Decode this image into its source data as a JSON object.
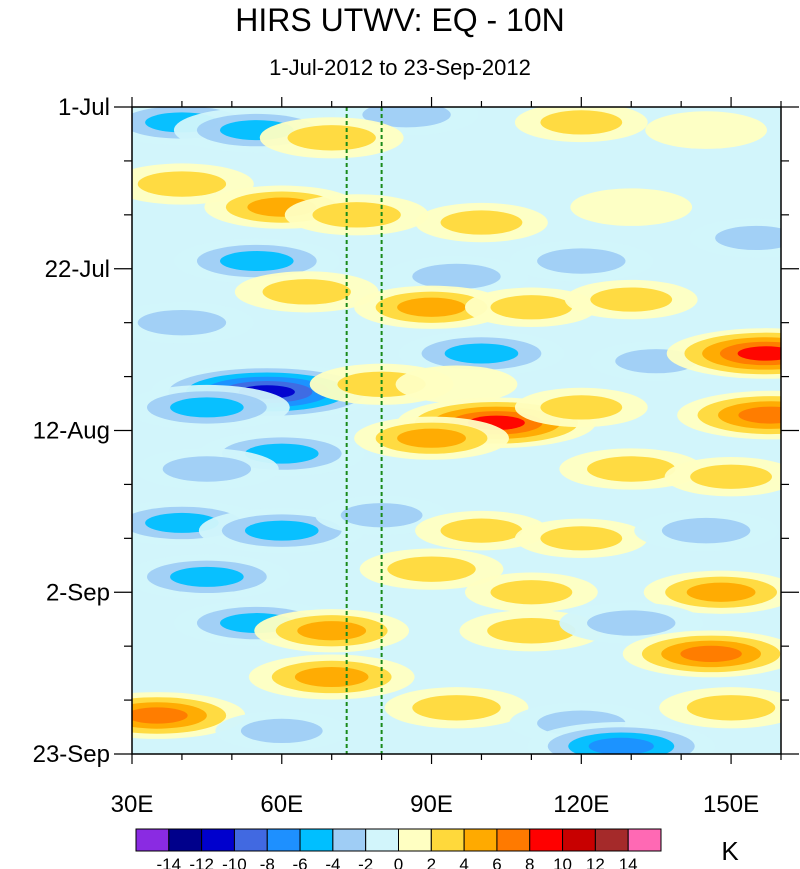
{
  "chart_data": {
    "type": "heatmap",
    "title": "HIRS UTWV: EQ - 10N",
    "subtitle": "1-Jul-2012 to 23-Sep-2012",
    "x_ticks": [
      {
        "value": 30,
        "label": "30E"
      },
      {
        "value": 60,
        "label": "60E"
      },
      {
        "value": 90,
        "label": "90E"
      },
      {
        "value": 120,
        "label": "120E"
      },
      {
        "value": 150,
        "label": "150E"
      }
    ],
    "xlim": [
      30,
      160
    ],
    "y_ticks": [
      {
        "day": 0,
        "label": "1-Jul"
      },
      {
        "day": 21,
        "label": "22-Jul"
      },
      {
        "day": 42,
        "label": "12-Aug"
      },
      {
        "day": 63,
        "label": "2-Sep"
      },
      {
        "day": 84,
        "label": "23-Sep"
      }
    ],
    "ylim_days": [
      0,
      84
    ],
    "reference_lines_lon": [
      73,
      80
    ],
    "colorbar": {
      "unit": "K",
      "levels": [
        -14,
        -12,
        -10,
        -8,
        -6,
        -4,
        -2,
        0,
        2,
        4,
        6,
        8,
        10,
        12,
        14
      ],
      "level_labels": [
        "-14",
        "-12",
        "-10",
        "-8",
        "-6",
        "-4",
        "-2",
        "0",
        "2",
        "4",
        "6",
        "8",
        "10",
        "12",
        "14"
      ],
      "colors": [
        "#8a2be2",
        "#00008b",
        "#0000cd",
        "#4169e1",
        "#1e90ff",
        "#00bfff",
        "#9fcdf5",
        "#d2f5fb",
        "#ffffc2",
        "#ffd93b",
        "#ffaa00",
        "#ff7a00",
        "#ff0000",
        "#c80000",
        "#a52a2a",
        "#ff69b4"
      ]
    },
    "anomaly_features": [
      {
        "lon": 40,
        "day": 2,
        "value": -6
      },
      {
        "lon": 55,
        "day": 3,
        "value": -6
      },
      {
        "lon": 85,
        "day": 1,
        "value": -4
      },
      {
        "lon": 120,
        "day": 2,
        "value": 3
      },
      {
        "lon": 145,
        "day": 3,
        "value": 2
      },
      {
        "lon": 70,
        "day": 4,
        "value": 4
      },
      {
        "lon": 40,
        "day": 10,
        "value": 4
      },
      {
        "lon": 60,
        "day": 13,
        "value": 5
      },
      {
        "lon": 75,
        "day": 14,
        "value": 4
      },
      {
        "lon": 100,
        "day": 15,
        "value": 3
      },
      {
        "lon": 130,
        "day": 13,
        "value": 2
      },
      {
        "lon": 55,
        "day": 20,
        "value": -6
      },
      {
        "lon": 95,
        "day": 22,
        "value": -4
      },
      {
        "lon": 120,
        "day": 20,
        "value": -4
      },
      {
        "lon": 155,
        "day": 17,
        "value": -3
      },
      {
        "lon": 65,
        "day": 24,
        "value": 4
      },
      {
        "lon": 90,
        "day": 26,
        "value": 5
      },
      {
        "lon": 110,
        "day": 26,
        "value": 3
      },
      {
        "lon": 130,
        "day": 25,
        "value": 3
      },
      {
        "lon": 40,
        "day": 28,
        "value": -4
      },
      {
        "lon": 100,
        "day": 32,
        "value": -6
      },
      {
        "lon": 135,
        "day": 33,
        "value": -3
      },
      {
        "lon": 157,
        "day": 32,
        "value": 9
      },
      {
        "lon": 57,
        "day": 37,
        "value": -12
      },
      {
        "lon": 45,
        "day": 39,
        "value": -6
      },
      {
        "lon": 80,
        "day": 36,
        "value": 4
      },
      {
        "lon": 95,
        "day": 36,
        "value": 2
      },
      {
        "lon": 103,
        "day": 41,
        "value": 9
      },
      {
        "lon": 90,
        "day": 43,
        "value": 5
      },
      {
        "lon": 120,
        "day": 39,
        "value": 3
      },
      {
        "lon": 158,
        "day": 40,
        "value": 8
      },
      {
        "lon": 60,
        "day": 45,
        "value": -6
      },
      {
        "lon": 45,
        "day": 47,
        "value": -4
      },
      {
        "lon": 130,
        "day": 47,
        "value": 4
      },
      {
        "lon": 150,
        "day": 48,
        "value": 3
      },
      {
        "lon": 40,
        "day": 54,
        "value": -6
      },
      {
        "lon": 60,
        "day": 55,
        "value": -6
      },
      {
        "lon": 80,
        "day": 53,
        "value": -3
      },
      {
        "lon": 100,
        "day": 55,
        "value": 3
      },
      {
        "lon": 120,
        "day": 56,
        "value": 3
      },
      {
        "lon": 145,
        "day": 55,
        "value": -4
      },
      {
        "lon": 45,
        "day": 61,
        "value": -6
      },
      {
        "lon": 90,
        "day": 60,
        "value": 4
      },
      {
        "lon": 110,
        "day": 63,
        "value": 3
      },
      {
        "lon": 148,
        "day": 63,
        "value": 5
      },
      {
        "lon": 55,
        "day": 67,
        "value": -6
      },
      {
        "lon": 70,
        "day": 68,
        "value": 5
      },
      {
        "lon": 110,
        "day": 68,
        "value": 4
      },
      {
        "lon": 130,
        "day": 67,
        "value": -4
      },
      {
        "lon": 146,
        "day": 71,
        "value": 7
      },
      {
        "lon": 70,
        "day": 74,
        "value": 6
      },
      {
        "lon": 35,
        "day": 79,
        "value": 7
      },
      {
        "lon": 95,
        "day": 78,
        "value": 4
      },
      {
        "lon": 120,
        "day": 80,
        "value": -4
      },
      {
        "lon": 150,
        "day": 78,
        "value": 4
      },
      {
        "lon": 60,
        "day": 81,
        "value": -3
      },
      {
        "lon": 128,
        "day": 83,
        "value": -8
      }
    ]
  }
}
